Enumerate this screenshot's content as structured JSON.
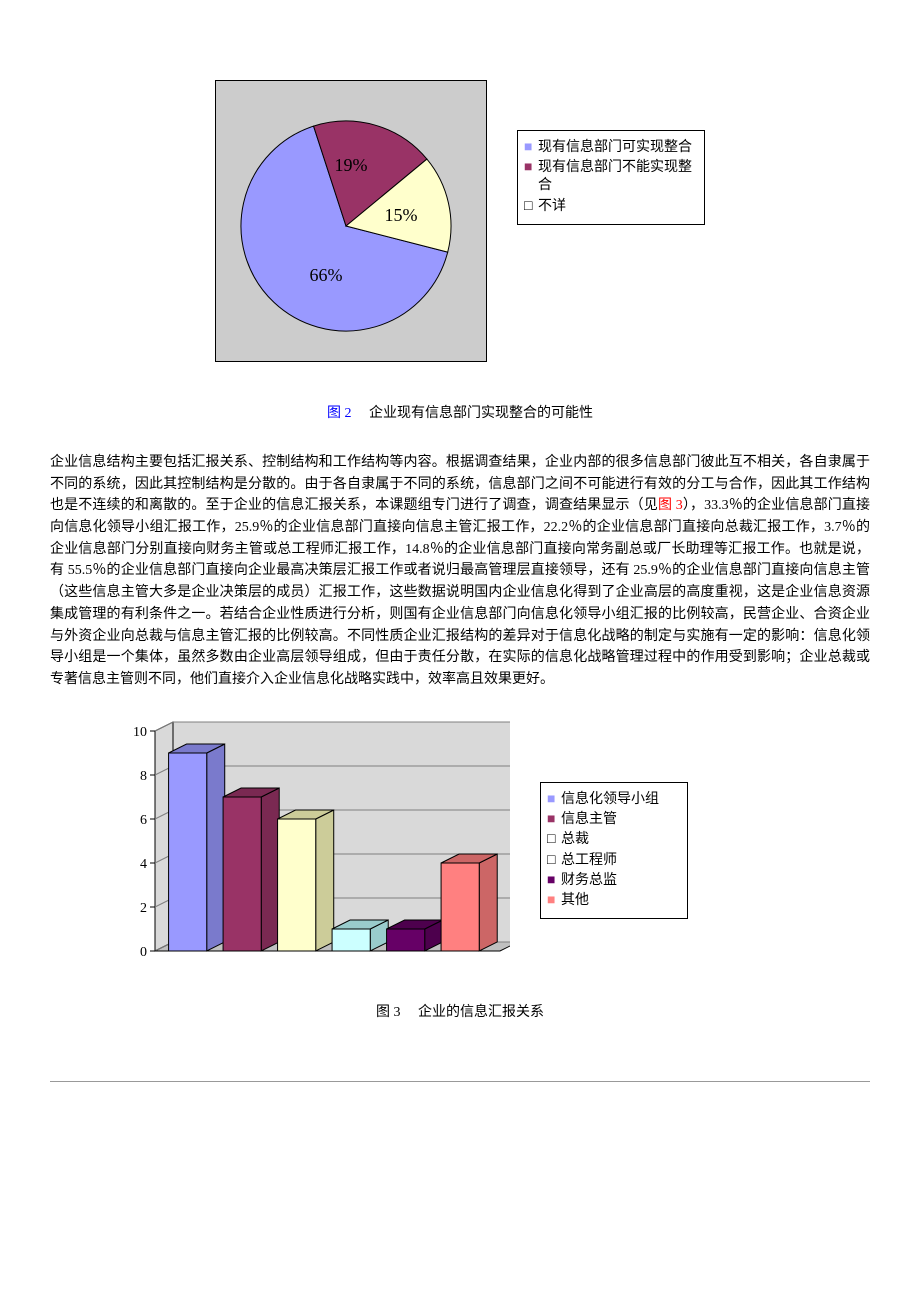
{
  "pie_chart": {
    "type": "pie",
    "background_color": "#cccccc",
    "border_color": "#000000",
    "slices": [
      {
        "label": "现有信息部门可实现整合",
        "value": 66,
        "display": "66%",
        "color": "#9999ff",
        "bullet": "■"
      },
      {
        "label": "现有信息部门不能实现整合",
        "value": 19,
        "display": "19%",
        "color": "#993366",
        "bullet": "■"
      },
      {
        "label": "不详",
        "value": 15,
        "display": "15%",
        "color": "#ffffcc",
        "bullet": "□"
      }
    ],
    "caption_prefix": "图 2",
    "caption_text": "企业现有信息部门实现整合的可能性",
    "label_fontsize": 18
  },
  "paragraph": {
    "text_before_link": "企业信息结构主要包括汇报关系、控制结构和工作结构等内容。根据调查结果，企业内部的很多信息部门彼此互不相关，各自隶属于不同的系统，因此其控制结构是分散的。由于各自隶属于不同的系统，信息部门之间不可能进行有效的分工与合作，因此其工作结构也是不连续的和离散的。至于企业的信息汇报关系，本课题组专门进行了调查，调查结果显示（见",
    "link_text": "图 3",
    "text_after_link": "），33.3％的企业信息部门直接向信息化领导小组汇报工作，25.9％的企业信息部门直接向信息主管汇报工作，22.2％的企业信息部门直接向总裁汇报工作，3.7％的企业信息部门分别直接向财务主管或总工程师汇报工作，14.8％的企业信息部门直接向常务副总或厂长助理等汇报工作。也就是说，有 55.5％的企业信息部门直接向企业最高决策层汇报工作或者说归最高管理层直接领导，还有 25.9％的企业信息部门直接向信息主管（这些信息主管大多是企业决策层的成员）汇报工作，这些数据说明国内企业信息化得到了企业高层的高度重视，这是企业信息资源集成管理的有利条件之一。若结合企业性质进行分析，则国有企业信息部门向信息化领导小组汇报的比例较高，民营企业、合资企业与外资企业向总裁与信息主管汇报的比例较高。不同性质企业汇报结构的差异对于信息化战略的制定与实施有一定的影响：信息化领导小组是一个集体，虽然多数由企业高层领导组成，但由于责任分散，在实际的信息化战略管理过程中的作用受到影响；企业总裁或专著信息主管则不同，他们直接介入企业信息化战略实践中，效率高且效果更好。"
  },
  "bar_chart": {
    "type": "bar3d",
    "ylim": [
      0,
      10
    ],
    "ytick_step": 2,
    "yticks": [
      "0",
      "2",
      "4",
      "6",
      "8",
      "10"
    ],
    "floor_color": "#c0c0c0",
    "wall_color": "#d9d9d9",
    "grid_color": "#808080",
    "axis_color": "#000000",
    "bar_depth": 18,
    "bars": [
      {
        "label": "信息化领导小组",
        "value": 9.0,
        "color": "#9999ff",
        "side_color": "#7a7acc",
        "bullet": "■"
      },
      {
        "label": "信息主管",
        "value": 7.0,
        "color": "#993366",
        "side_color": "#7a2952",
        "bullet": "■"
      },
      {
        "label": "总裁",
        "value": 6.0,
        "color": "#ffffcc",
        "side_color": "#cccc99",
        "bullet": "□"
      },
      {
        "label": "总工程师",
        "value": 1.0,
        "color": "#ccffff",
        "side_color": "#99cccc",
        "bullet": "□"
      },
      {
        "label": "财务总监",
        "value": 1.0,
        "color": "#660066",
        "side_color": "#4d004d",
        "bullet": "■"
      },
      {
        "label": "其他",
        "value": 4.0,
        "color": "#ff8080",
        "side_color": "#cc6666",
        "bullet": "■"
      }
    ],
    "caption_prefix": "图 3",
    "caption_text": "企业的信息汇报关系",
    "label_fontsize": 14
  }
}
